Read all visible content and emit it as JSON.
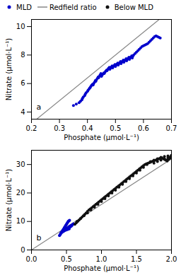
{
  "chart_data": [
    {
      "type": "scatter",
      "xlabel": "Phosphate (μmol·L⁻¹)",
      "ylabel": "Nitrate (μmol·L⁻¹)",
      "xlim": [
        0.2,
        0.7
      ],
      "ylim": [
        3.5,
        10.5
      ],
      "xticks": [
        0.2,
        0.3,
        0.4,
        0.5,
        0.6,
        0.7
      ],
      "yticks": [
        4,
        6,
        8,
        10
      ],
      "annotations": [
        "a"
      ],
      "legend": "top",
      "series": [
        {
          "name": "MLD",
          "type": "scatter",
          "color": "#0000cc",
          "x": [
            0.35,
            0.36,
            0.37,
            0.375,
            0.38,
            0.382,
            0.385,
            0.39,
            0.392,
            0.395,
            0.4,
            0.402,
            0.405,
            0.408,
            0.41,
            0.412,
            0.415,
            0.418,
            0.42,
            0.422,
            0.425,
            0.428,
            0.43,
            0.432,
            0.435,
            0.438,
            0.44,
            0.442,
            0.445,
            0.448,
            0.45,
            0.452,
            0.455,
            0.458,
            0.46,
            0.462,
            0.465,
            0.468,
            0.47,
            0.472,
            0.475,
            0.478,
            0.48,
            0.482,
            0.485,
            0.488,
            0.49,
            0.492,
            0.495,
            0.498,
            0.5,
            0.502,
            0.505,
            0.508,
            0.51,
            0.512,
            0.515,
            0.518,
            0.52,
            0.522,
            0.525,
            0.528,
            0.53,
            0.532,
            0.535,
            0.538,
            0.54,
            0.542,
            0.545,
            0.548,
            0.55,
            0.552,
            0.555,
            0.558,
            0.56,
            0.562,
            0.565,
            0.57,
            0.575,
            0.58,
            0.585,
            0.59,
            0.595,
            0.6,
            0.605,
            0.61,
            0.615,
            0.62,
            0.625,
            0.63,
            0.635,
            0.64,
            0.645,
            0.65,
            0.655,
            0.66
          ],
          "values": [
            4.45,
            4.55,
            4.65,
            4.75,
            4.85,
            4.95,
            5.05,
            5.15,
            5.25,
            5.35,
            5.45,
            5.52,
            5.6,
            5.68,
            5.72,
            5.8,
            5.88,
            5.95,
            5.9,
            6.0,
            6.1,
            6.2,
            6.15,
            6.25,
            6.35,
            6.45,
            6.4,
            6.5,
            6.6,
            6.7,
            6.5,
            6.58,
            6.66,
            6.74,
            6.7,
            6.78,
            6.86,
            6.94,
            6.9,
            6.98,
            7.06,
            7.14,
            7.0,
            7.08,
            7.16,
            7.24,
            7.1,
            7.18,
            7.26,
            7.34,
            7.2,
            7.28,
            7.36,
            7.44,
            7.3,
            7.38,
            7.46,
            7.54,
            7.4,
            7.48,
            7.56,
            7.64,
            7.5,
            7.58,
            7.66,
            7.74,
            7.6,
            7.68,
            7.76,
            7.84,
            7.7,
            7.78,
            7.86,
            7.94,
            7.8,
            7.9,
            8.0,
            8.1,
            8.2,
            8.3,
            8.4,
            8.5,
            8.6,
            8.65,
            8.7,
            8.75,
            8.8,
            8.9,
            9.0,
            9.1,
            9.2,
            9.3,
            9.35,
            9.3,
            9.25,
            9.2
          ]
        },
        {
          "name": "Redfield ratio",
          "type": "line",
          "color": "#888888",
          "x": [
            0.21875,
            0.65625
          ],
          "values": [
            3.5,
            10.5
          ]
        },
        {
          "name": "Below MLD",
          "type": "scatter",
          "color": "#111111",
          "x": [],
          "values": []
        }
      ]
    },
    {
      "type": "scatter",
      "xlabel": "Phosphate (μmol·L⁻¹)",
      "ylabel": "Nitrate (μmol·L⁻¹)",
      "xlim": [
        0.0,
        2.0
      ],
      "ylim": [
        0,
        35
      ],
      "xticks": [
        {
          "value": 0,
          "label": "0.0"
        },
        0.5,
        {
          "value": 1,
          "label": "1.0"
        },
        1.5,
        {
          "value": 2,
          "label": "2.0"
        }
      ],
      "yticks": [
        0,
        10,
        20,
        30
      ],
      "annotations": [
        "b"
      ],
      "series": [
        {
          "type": "line",
          "color": "#888888",
          "x": [
            0,
            2
          ],
          "values": [
            0,
            32
          ]
        },
        {
          "type": "scatter",
          "color": "#0000cc",
          "x": [
            0.4,
            0.405,
            0.41,
            0.415,
            0.42,
            0.425,
            0.43,
            0.435,
            0.44,
            0.445,
            0.45,
            0.455,
            0.46,
            0.465,
            0.47,
            0.475,
            0.48,
            0.485,
            0.49,
            0.495,
            0.5,
            0.505,
            0.51,
            0.515,
            0.52,
            0.525,
            0.53,
            0.535,
            0.54,
            0.545,
            0.5,
            0.51,
            0.52,
            0.53,
            0.54,
            0.55,
            0.56,
            0.57,
            0.5,
            0.51,
            0.52,
            0.53,
            0.54,
            0.55,
            0.56,
            0.57,
            0.58,
            0.59,
            0.6,
            0.55,
            0.56,
            0.57,
            0.58,
            0.42,
            0.44,
            0.46,
            0.48,
            0.5,
            0.52,
            0.54
          ],
          "values": [
            5.0,
            5.2,
            5.4,
            5.6,
            5.8,
            6.0,
            6.2,
            6.4,
            6.6,
            6.8,
            7.0,
            7.2,
            7.4,
            7.6,
            7.8,
            8.0,
            8.2,
            8.4,
            8.6,
            8.8,
            9.0,
            9.2,
            9.4,
            9.6,
            9.8,
            10.0,
            10.1,
            10.2,
            10.3,
            10.4,
            7.5,
            7.6,
            7.8,
            8.0,
            8.2,
            8.4,
            8.5,
            8.6,
            7.2,
            7.4,
            7.6,
            7.8,
            8.0,
            8.2,
            8.4,
            8.6,
            8.8,
            9.0,
            9.2,
            8.0,
            8.2,
            8.4,
            8.6,
            6.0,
            6.2,
            6.5,
            6.8,
            7.0,
            7.2,
            7.4
          ]
        },
        {
          "type": "scatter",
          "color": "#111111",
          "x": [
            0.62,
            0.64,
            0.66,
            0.68,
            0.7,
            0.72,
            0.74,
            0.76,
            0.78,
            0.8,
            0.82,
            0.84,
            0.86,
            0.88,
            0.9,
            0.92,
            0.94,
            0.96,
            0.98,
            1.0,
            1.02,
            1.04,
            1.06,
            1.08,
            1.1,
            1.12,
            1.14,
            1.16,
            1.18,
            1.2,
            1.22,
            1.24,
            1.26,
            1.28,
            1.3,
            1.32,
            1.34,
            1.36,
            1.38,
            1.4,
            1.42,
            1.44,
            1.46,
            1.48,
            1.5,
            1.52,
            1.54,
            1.56,
            1.58,
            1.6,
            1.62,
            1.64,
            1.66,
            1.68,
            1.7,
            1.72,
            1.74,
            1.76,
            1.78,
            1.8,
            1.82,
            1.84,
            1.86,
            1.88,
            1.9,
            1.92,
            1.94,
            1.96,
            1.98,
            2.0,
            0.65,
            0.7,
            0.75,
            0.8,
            0.85,
            0.9,
            0.95,
            1.0,
            1.05,
            1.1,
            1.15,
            1.2,
            1.25,
            1.3,
            1.35,
            1.4,
            1.45,
            1.5,
            1.55,
            1.6,
            1.65,
            1.7,
            1.75,
            1.8,
            1.85,
            1.9,
            1.95,
            2.0,
            1.75,
            1.8,
            1.85,
            1.9,
            1.95,
            2.0,
            1.92,
            1.95,
            1.98,
            2.0
          ],
          "values": [
            9.0,
            9.5,
            10.0,
            10.5,
            11.0,
            11.5,
            12.0,
            12.5,
            13.0,
            13.5,
            14.0,
            14.4,
            14.8,
            15.2,
            15.6,
            16.0,
            16.4,
            16.8,
            17.2,
            17.6,
            18.0,
            18.4,
            18.8,
            19.2,
            19.6,
            20.0,
            20.4,
            20.8,
            21.2,
            21.6,
            22.0,
            22.4,
            22.8,
            23.2,
            23.6,
            24.0,
            24.4,
            24.8,
            25.2,
            25.6,
            26.0,
            26.4,
            26.8,
            27.2,
            27.6,
            28.0,
            28.4,
            28.8,
            29.2,
            29.6,
            30.0,
            30.2,
            30.4,
            30.6,
            30.8,
            31.0,
            31.2,
            31.4,
            31.6,
            31.8,
            32.0,
            32.2,
            32.4,
            32.1,
            31.8,
            31.5,
            31.2,
            31.8,
            32.2,
            32.5,
            10.0,
            11.0,
            12.0,
            13.0,
            14.0,
            15.0,
            16.0,
            17.0,
            18.0,
            19.0,
            20.0,
            21.0,
            22.0,
            23.0,
            24.0,
            25.0,
            26.0,
            27.0,
            28.0,
            29.0,
            30.0,
            31.0,
            31.5,
            32.0,
            32.5,
            32.8,
            33.0,
            33.2,
            30.5,
            31.0,
            31.5,
            32.0,
            32.5,
            33.0,
            31.5,
            32.0,
            32.5,
            33.0
          ]
        }
      ]
    }
  ]
}
